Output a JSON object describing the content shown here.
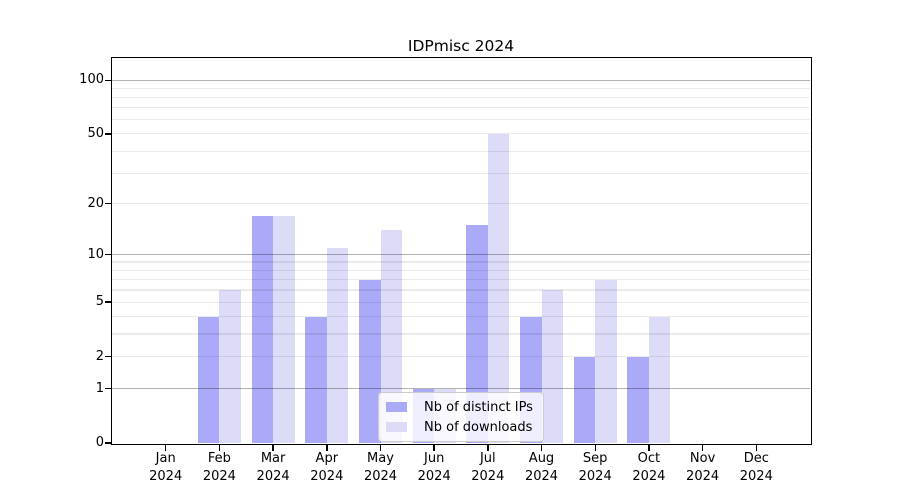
{
  "chart_data": {
    "type": "bar",
    "title": "IDPmisc 2024",
    "categories": [
      "Jan 2024",
      "Feb 2024",
      "Mar 2024",
      "Apr 2024",
      "May 2024",
      "Jun 2024",
      "Jul 2024",
      "Aug 2024",
      "Sep 2024",
      "Oct 2024",
      "Nov 2024",
      "Dec 2024"
    ],
    "series": [
      {
        "name": "Nb of distinct IPs",
        "color": "#aaaaf8",
        "values": [
          0,
          4,
          17,
          4,
          7,
          1,
          15,
          4,
          2,
          2,
          0,
          0
        ]
      },
      {
        "name": "Nb of downloads",
        "color": "#dcdcf8",
        "values": [
          0,
          6,
          17,
          11,
          14,
          1,
          50,
          6,
          7,
          4,
          0,
          0
        ]
      }
    ],
    "xlabel": "",
    "ylabel": "",
    "yscale": "log1p",
    "ylim": [
      0,
      131
    ],
    "yticks": {
      "values": [
        0,
        1,
        2,
        5,
        10,
        20,
        50,
        100
      ],
      "labels": [
        "0",
        "1",
        "2",
        "5",
        "10",
        "20",
        "50",
        "100"
      ]
    },
    "grid": "horizontal major (1,10,100) and minor (2-9, 20-90) lines drawn over bars",
    "legend_position": "lower center"
  },
  "colors": {
    "background": "#ffffff",
    "axis": "#000000",
    "grid_major": "rgba(0,0,0,0.30)",
    "grid_minor": "rgba(0,0,0,0.08)",
    "legend_border": "#cccccc"
  }
}
